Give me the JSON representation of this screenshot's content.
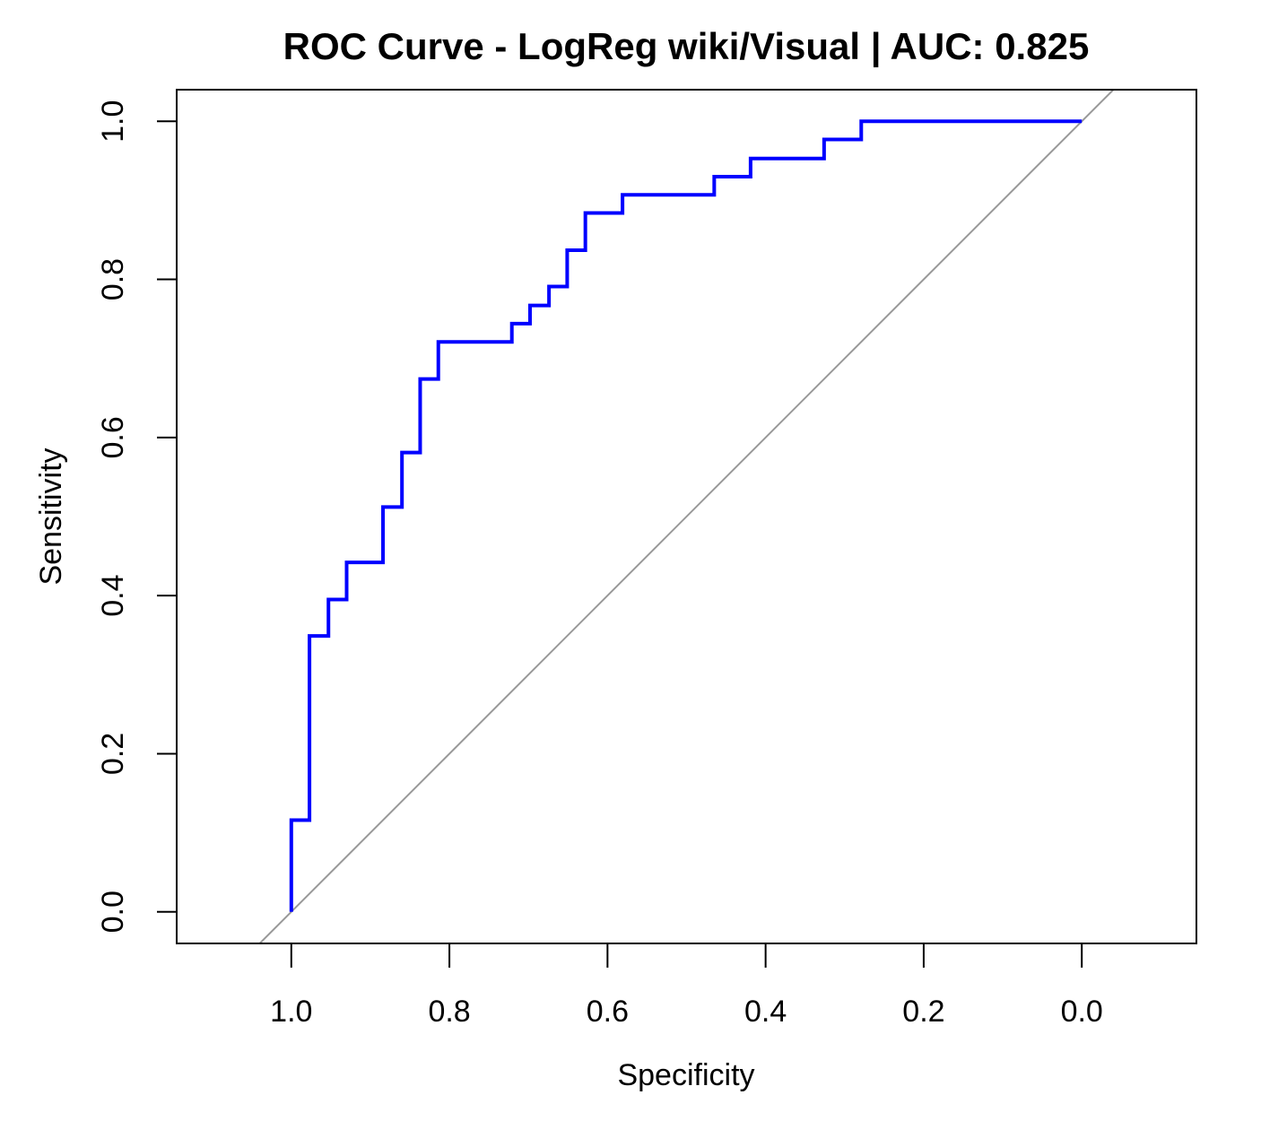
{
  "chart_data": {
    "type": "line",
    "title": "ROC Curve - LogReg wiki/Visual | AUC: 0.825",
    "xlabel": "Specificity",
    "ylabel": "Sensitivity",
    "x_reversed": true,
    "xlim": [
      1.145,
      -0.145
    ],
    "ylim": [
      -0.04,
      1.04
    ],
    "x_ticks": [
      1.0,
      0.8,
      0.6,
      0.4,
      0.2,
      0.0
    ],
    "x_tick_labels": [
      "1.0",
      "0.8",
      "0.6",
      "0.4",
      "0.2",
      "0.0"
    ],
    "y_ticks": [
      0.0,
      0.2,
      0.4,
      0.6,
      0.8,
      1.0
    ],
    "y_tick_labels": [
      "0.0",
      "0.2",
      "0.4",
      "0.6",
      "0.8",
      "1.0"
    ],
    "grid": false,
    "colors": {
      "roc": "#0000ff",
      "reference": "#999999",
      "axes": "#000000"
    },
    "series": [
      {
        "role": "roc",
        "points": [
          [
            1.0,
            0.0
          ],
          [
            1.0,
            0.116
          ],
          [
            0.977,
            0.116
          ],
          [
            0.977,
            0.349
          ],
          [
            0.953,
            0.349
          ],
          [
            0.953,
            0.395
          ],
          [
            0.93,
            0.395
          ],
          [
            0.93,
            0.442
          ],
          [
            0.884,
            0.442
          ],
          [
            0.884,
            0.512
          ],
          [
            0.86,
            0.512
          ],
          [
            0.86,
            0.581
          ],
          [
            0.837,
            0.581
          ],
          [
            0.837,
            0.674
          ],
          [
            0.814,
            0.674
          ],
          [
            0.814,
            0.721
          ],
          [
            0.721,
            0.721
          ],
          [
            0.721,
            0.744
          ],
          [
            0.698,
            0.744
          ],
          [
            0.698,
            0.767
          ],
          [
            0.674,
            0.767
          ],
          [
            0.674,
            0.791
          ],
          [
            0.651,
            0.791
          ],
          [
            0.651,
            0.837
          ],
          [
            0.628,
            0.837
          ],
          [
            0.628,
            0.884
          ],
          [
            0.581,
            0.884
          ],
          [
            0.581,
            0.907
          ],
          [
            0.465,
            0.907
          ],
          [
            0.465,
            0.93
          ],
          [
            0.419,
            0.93
          ],
          [
            0.419,
            0.953
          ],
          [
            0.326,
            0.953
          ],
          [
            0.326,
            0.977
          ],
          [
            0.279,
            0.977
          ],
          [
            0.279,
            1.0
          ],
          [
            0.0,
            1.0
          ]
        ]
      },
      {
        "role": "reference",
        "points": [
          [
            1.04,
            -0.04
          ],
          [
            -0.04,
            1.04
          ]
        ]
      }
    ]
  }
}
